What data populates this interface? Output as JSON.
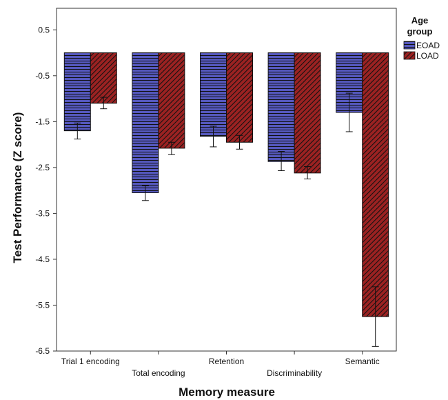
{
  "chart_data": {
    "type": "bar",
    "ylabel": "Test Performance (Z score)",
    "xlabel": "Memory measure",
    "ylim": [
      -6.5,
      0.97
    ],
    "yticks": [
      0.5,
      -0.5,
      -1.5,
      -2.5,
      -3.5,
      -4.5,
      -5.5,
      -6.5
    ],
    "ytick_labels": [
      "0.5",
      "-0.5",
      "-1.5",
      "-2.5",
      "-3.5",
      "-4.5",
      "-5.5",
      "-6.5"
    ],
    "categories": [
      "Trial 1 encoding",
      "Total encoding",
      "Retention",
      "Discriminability",
      "Semantic"
    ],
    "legend": {
      "title_line1": "Age",
      "title_line2": "group",
      "placement": "right"
    },
    "error_bars": true,
    "series": [
      {
        "name": "EOAD",
        "color": "#5055b8",
        "pattern": "horizontal-lines",
        "values": [
          -1.7,
          -3.05,
          -1.82,
          -2.37,
          -1.3
        ],
        "error_low": [
          -1.88,
          -3.22,
          -2.05,
          -2.57,
          -1.72
        ],
        "error_high": [
          -1.53,
          -2.9,
          -1.6,
          -2.15,
          -0.88
        ]
      },
      {
        "name": "LOAD",
        "color": "#9b2222",
        "pattern": "diagonal-lines",
        "values": [
          -1.1,
          -2.08,
          -1.95,
          -2.62,
          -5.75
        ],
        "error_low": [
          -1.22,
          -2.22,
          -2.1,
          -2.75,
          -6.4
        ],
        "error_high": [
          -0.97,
          -1.95,
          -1.8,
          -2.48,
          -5.1
        ]
      }
    ]
  }
}
